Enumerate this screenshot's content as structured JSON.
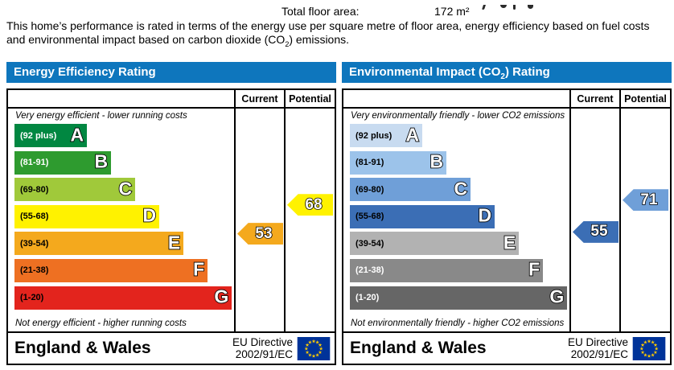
{
  "page": {
    "floor_area_label": "Total floor area:",
    "floor_area_value": "172 m²",
    "intro": {
      "before_sub": "This home’s performance is rated in terms of the energy use per square metre of floor area, energy efficiency based on fuel costs and environmental impact based on carbon dioxide (CO",
      "sub": "2",
      "after_sub": ") emissions."
    }
  },
  "eu_flag": {
    "bg": "#003399",
    "star": "#ffcc00"
  },
  "header_blue": "#0e76bd",
  "charts": [
    {
      "id": "energy-efficiency",
      "title_pre": "Energy Efficiency Rating",
      "title_sub": "",
      "title_post": "",
      "columns": {
        "current": "Current",
        "potential": "Potential"
      },
      "top_caption": "Very energy efficient - lower running costs",
      "bottom_caption": "Not energy efficient - higher running costs",
      "bands": [
        {
          "letter": "A",
          "range": "(92 plus)",
          "min": 92,
          "max": 100,
          "color": "#018741",
          "text_color": "#ffffff",
          "width_pct": 33
        },
        {
          "letter": "B",
          "range": "(81-91)",
          "min": 81,
          "max": 91,
          "color": "#2e9b2f",
          "text_color": "#ffffff",
          "width_pct": 44
        },
        {
          "letter": "C",
          "range": "(69-80)",
          "min": 69,
          "max": 80,
          "color": "#a0c93a",
          "text_color": "#000000",
          "width_pct": 55
        },
        {
          "letter": "D",
          "range": "(55-68)",
          "min": 55,
          "max": 68,
          "color": "#fff200",
          "text_color": "#000000",
          "width_pct": 66
        },
        {
          "letter": "E",
          "range": "(39-54)",
          "min": 39,
          "max": 54,
          "color": "#f4a91d",
          "text_color": "#000000",
          "width_pct": 77
        },
        {
          "letter": "F",
          "range": "(21-38)",
          "min": 21,
          "max": 38,
          "color": "#ee7022",
          "text_color": "#000000",
          "width_pct": 88
        },
        {
          "letter": "G",
          "range": "(1-20)",
          "min": 1,
          "max": 20,
          "color": "#e3241d",
          "text_color": "#000000",
          "width_pct": 99
        }
      ],
      "current": {
        "value": 53,
        "display": "53",
        "band_index": 4,
        "color": "#f4a91d"
      },
      "potential": {
        "value": 68,
        "display": "68",
        "band_index": 3,
        "color": "#fff200"
      },
      "footer": {
        "region": "England & Wales",
        "directive_line1": "EU Directive",
        "directive_line2": "2002/91/EC"
      }
    },
    {
      "id": "environmental-impact",
      "title_pre": "Environmental Impact (CO",
      "title_sub": "2",
      "title_post": ") Rating",
      "columns": {
        "current": "Current",
        "potential": "Potential"
      },
      "top_caption": "Very environmentally friendly - lower CO2 emissions",
      "bottom_caption": "Not environmentally friendly - higher CO2 emissions",
      "bands": [
        {
          "letter": "A",
          "range": "(92 plus)",
          "min": 92,
          "max": 100,
          "color": "#c8dbf0",
          "text_color": "#000000",
          "width_pct": 33
        },
        {
          "letter": "B",
          "range": "(81-91)",
          "min": 81,
          "max": 91,
          "color": "#9cc3ea",
          "text_color": "#000000",
          "width_pct": 44
        },
        {
          "letter": "C",
          "range": "(69-80)",
          "min": 69,
          "max": 80,
          "color": "#6f9fd8",
          "text_color": "#000000",
          "width_pct": 55
        },
        {
          "letter": "D",
          "range": "(55-68)",
          "min": 55,
          "max": 68,
          "color": "#3b6eb5",
          "text_color": "#000000",
          "width_pct": 66
        },
        {
          "letter": "E",
          "range": "(39-54)",
          "min": 39,
          "max": 54,
          "color": "#b2b2b2",
          "text_color": "#000000",
          "width_pct": 77
        },
        {
          "letter": "F",
          "range": "(21-38)",
          "min": 21,
          "max": 38,
          "color": "#898989",
          "text_color": "#ffffff",
          "width_pct": 88
        },
        {
          "letter": "G",
          "range": "(1-20)",
          "min": 1,
          "max": 20,
          "color": "#666666",
          "text_color": "#ffffff",
          "width_pct": 99
        }
      ],
      "current": {
        "value": 55,
        "display": "55",
        "band_index": 3,
        "color": "#3b6eb5"
      },
      "potential": {
        "value": 71,
        "display": "71",
        "band_index": 2,
        "color": "#6f9fd8"
      },
      "footer": {
        "region": "England & Wales",
        "directive_line1": "EU Directive",
        "directive_line2": "2002/91/EC"
      }
    }
  ],
  "chart_data": [
    {
      "type": "bar",
      "title": "Energy Efficiency Rating",
      "categories": [
        "A (92 plus)",
        "B (81-91)",
        "C (69-80)",
        "D (55-68)",
        "E (39-54)",
        "F (21-38)",
        "G (1-20)"
      ],
      "values": [
        33,
        44,
        55,
        66,
        77,
        88,
        99
      ],
      "band_ranges": [
        [
          92,
          100
        ],
        [
          81,
          91
        ],
        [
          69,
          80
        ],
        [
          55,
          68
        ],
        [
          39,
          54
        ],
        [
          21,
          38
        ],
        [
          1,
          20
        ]
      ],
      "markers": {
        "current": 53,
        "potential": 68
      },
      "legend": [
        "Current",
        "Potential"
      ],
      "annotations": [
        "Very energy efficient - lower running costs",
        "Not energy efficient - higher running costs"
      ],
      "xlabel": "",
      "ylabel": ""
    },
    {
      "type": "bar",
      "title": "Environmental Impact (CO2) Rating",
      "categories": [
        "A (92 plus)",
        "B (81-91)",
        "C (69-80)",
        "D (55-68)",
        "E (39-54)",
        "F (21-38)",
        "G (1-20)"
      ],
      "values": [
        33,
        44,
        55,
        66,
        77,
        88,
        99
      ],
      "band_ranges": [
        [
          92,
          100
        ],
        [
          81,
          91
        ],
        [
          69,
          80
        ],
        [
          55,
          68
        ],
        [
          39,
          54
        ],
        [
          21,
          38
        ],
        [
          1,
          20
        ]
      ],
      "markers": {
        "current": 55,
        "potential": 71
      },
      "legend": [
        "Current",
        "Potential"
      ],
      "annotations": [
        "Very environmentally friendly - lower CO2 emissions",
        "Not environmentally friendly - higher CO2 emissions"
      ],
      "xlabel": "",
      "ylabel": ""
    }
  ]
}
